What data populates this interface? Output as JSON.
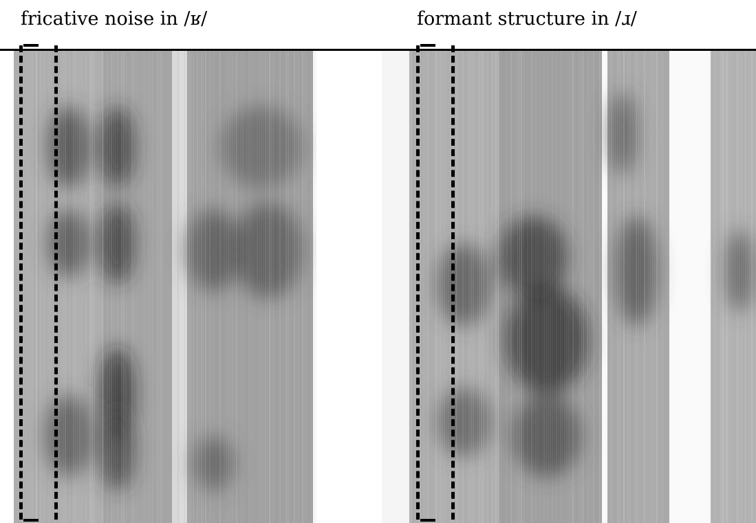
{
  "labels": {
    "left": "fricative noise in /ʁ/",
    "right": "formant structure in /ɹ/"
  },
  "colors": {
    "ink": "#000000",
    "background": "#ffffff"
  }
}
